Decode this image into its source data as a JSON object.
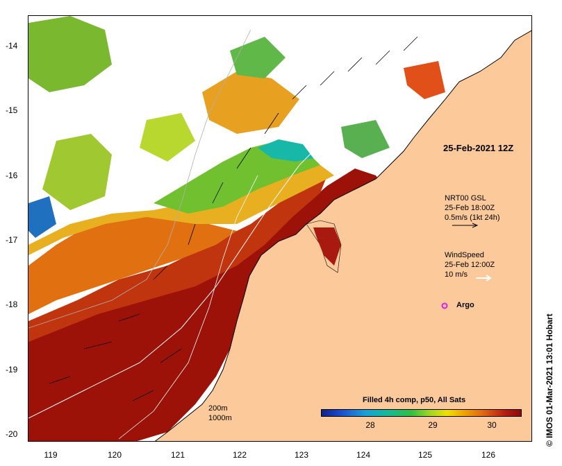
{
  "map": {
    "date_stamp": "25-Feb-2021 12Z",
    "lat_ticks": [
      "-14",
      "-15",
      "-16",
      "-17",
      "-18",
      "-19",
      "-20"
    ],
    "lon_ticks": [
      "119",
      "120",
      "121",
      "122",
      "123",
      "124",
      "125",
      "126"
    ],
    "current_legend": {
      "line1": "NRT00 GSL",
      "line2": "25-Feb 18:00Z",
      "line3": "0.5m/s (1kt 24h)"
    },
    "wind_legend": {
      "line1": "WindSpeed",
      "line2": "25-Feb 12:00Z",
      "line3": "10 m/s"
    },
    "argo_label": "Argo",
    "depth_legend": {
      "line1": "200m",
      "line2": "1000m"
    },
    "credit": "© IMOS 01-Mar-2021 13:01 Hobart",
    "colorbar": {
      "title": "Filled 4h comp, p50, All Sats",
      "ticks": [
        "28",
        "29",
        "30"
      ]
    },
    "colors": {
      "land": "#fcc99a",
      "warm": "#b31a10",
      "hot": "#8c0a0a",
      "argo": "#e020e0"
    }
  }
}
